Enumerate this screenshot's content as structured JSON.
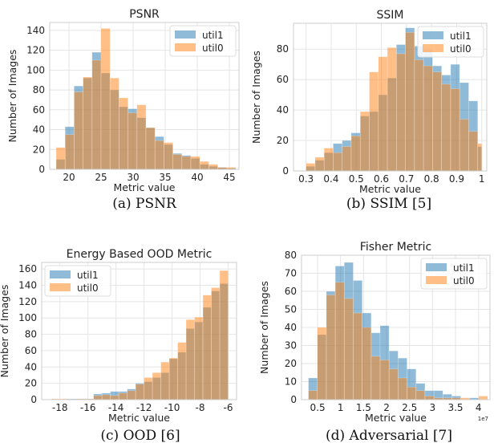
{
  "colors": {
    "util1": "#1f77b4",
    "util0": "#ff7f0e",
    "overlap": "#d8a777",
    "grid": "#e5e5e5",
    "frame": "#cccccc"
  },
  "chart_data": [
    {
      "type": "histogram",
      "title": "PSNR",
      "xlabel": "Metric value",
      "ylabel": "Number of Images",
      "caption": "(a) PSNR",
      "xlim": [
        17,
        46.5
      ],
      "ylim": [
        0,
        148
      ],
      "xticks": [
        20,
        25,
        30,
        35,
        40,
        45
      ],
      "yticks": [
        0,
        20,
        40,
        60,
        80,
        100,
        120,
        140
      ],
      "legend_position": "top-right",
      "legend": [
        "util1",
        "util0"
      ],
      "bin_edges": [
        18.0,
        19.4,
        20.8,
        22.2,
        23.6,
        25.0,
        26.4,
        27.8,
        29.2,
        30.6,
        32.0,
        33.4,
        34.8,
        36.2,
        37.6,
        39.0,
        40.4,
        41.8,
        43.2,
        44.6,
        46.0
      ],
      "series": [
        {
          "name": "util1",
          "values": [
            10,
            43,
            84,
            92,
            118,
            97,
            80,
            63,
            61,
            52,
            42,
            33,
            25,
            16,
            14,
            11,
            5,
            3,
            2,
            1
          ]
        },
        {
          "name": "util0",
          "values": [
            22,
            35,
            78,
            93,
            110,
            142,
            92,
            72,
            57,
            65,
            42,
            29,
            27,
            15,
            13,
            13,
            8,
            5,
            2,
            2
          ]
        }
      ]
    },
    {
      "type": "histogram",
      "title": "SSIM",
      "xlabel": "Metric value",
      "ylabel": "Number of Images",
      "caption": "(b) SSIM [5]",
      "xlim": [
        0.25,
        1.02
      ],
      "ylim": [
        0,
        97
      ],
      "xticks": [
        0.3,
        0.4,
        0.5,
        0.6,
        0.7,
        0.8,
        0.9,
        1.0
      ],
      "yticks": [
        0,
        20,
        40,
        60,
        80
      ],
      "legend_position": "top-right",
      "legend": [
        "util1",
        "util0"
      ],
      "bin_edges": [
        0.3,
        0.336,
        0.372,
        0.408,
        0.444,
        0.48,
        0.516,
        0.552,
        0.588,
        0.624,
        0.66,
        0.696,
        0.732,
        0.768,
        0.804,
        0.84,
        0.876,
        0.912,
        0.948,
        0.984,
        1.0
      ],
      "series": [
        {
          "name": "util1",
          "values": [
            3,
            7,
            12,
            18,
            20,
            25,
            36,
            39,
            50,
            61,
            83,
            94,
            82,
            80,
            69,
            63,
            70,
            58,
            46,
            16
          ]
        },
        {
          "name": "util0",
          "values": [
            5,
            9,
            15,
            12,
            16,
            23,
            39,
            65,
            75,
            81,
            77,
            91,
            73,
            69,
            65,
            57,
            54,
            34,
            26,
            18
          ]
        }
      ]
    },
    {
      "type": "histogram",
      "title": "Energy Based OOD Metric",
      "xlabel": "Metric value",
      "ylabel": "Number of Images",
      "caption": "(c) OOD [6]",
      "xlim": [
        -19.3,
        -5.4
      ],
      "ylim": [
        0,
        168
      ],
      "xticks": [
        -18,
        -16,
        -14,
        -12,
        -10,
        -8,
        -6
      ],
      "yticks": [
        0,
        20,
        40,
        60,
        80,
        100,
        120,
        140,
        160
      ],
      "legend_position": "top-left",
      "legend": [
        "util1",
        "util0"
      ],
      "bin_edges": [
        -18.6,
        -18.0,
        -17.4,
        -16.8,
        -16.2,
        -15.6,
        -15.0,
        -14.4,
        -13.8,
        -13.2,
        -12.6,
        -12.0,
        -11.4,
        -10.8,
        -10.2,
        -9.6,
        -9.0,
        -8.4,
        -7.8,
        -7.2,
        -6.6,
        -6.0
      ],
      "series": [
        {
          "name": "util1",
          "values": [
            0,
            0,
            1,
            1,
            1,
            7,
            8,
            10,
            10,
            13,
            20,
            22,
            27,
            33,
            50,
            58,
            87,
            95,
            113,
            133,
            142
          ]
        },
        {
          "name": "util0",
          "values": [
            1,
            1,
            0,
            1,
            1,
            5,
            6,
            5,
            8,
            11,
            19,
            27,
            33,
            46,
            51,
            70,
            98,
            101,
            128,
            137,
            158
          ]
        }
      ]
    },
    {
      "type": "histogram",
      "title": "Fisher Metric",
      "xlabel": "Metric value",
      "ylabel": "Number of Images",
      "caption": "(d) Adversarial [7]",
      "xlim": [
        0.15,
        4.25
      ],
      "ylim": [
        0,
        80
      ],
      "xticks": [
        0.5,
        1.0,
        1.5,
        2.0,
        2.5,
        3.0,
        3.5,
        4.0
      ],
      "yticks": [
        0,
        10,
        20,
        30,
        40,
        50,
        60,
        70,
        80
      ],
      "x_offset_label": "1e7",
      "legend_position": "top-right",
      "legend": [
        "util1",
        "util0"
      ],
      "bin_edges": [
        0.3,
        0.495,
        0.69,
        0.885,
        1.08,
        1.275,
        1.47,
        1.665,
        1.86,
        2.055,
        2.25,
        2.445,
        2.64,
        2.835,
        3.03,
        3.225,
        3.42,
        3.615,
        3.81,
        4.005,
        4.2
      ],
      "series": [
        {
          "name": "util1",
          "values": [
            12,
            36,
            60,
            74,
            76,
            66,
            48,
            37,
            41,
            27,
            23,
            17,
            9,
            5,
            5,
            3,
            2,
            0,
            1,
            0
          ]
        },
        {
          "name": "util0",
          "values": [
            5,
            40,
            58,
            65,
            56,
            48,
            40,
            24,
            22,
            17,
            12,
            7,
            5,
            2,
            1,
            1,
            1,
            1,
            0,
            2
          ]
        }
      ]
    }
  ]
}
